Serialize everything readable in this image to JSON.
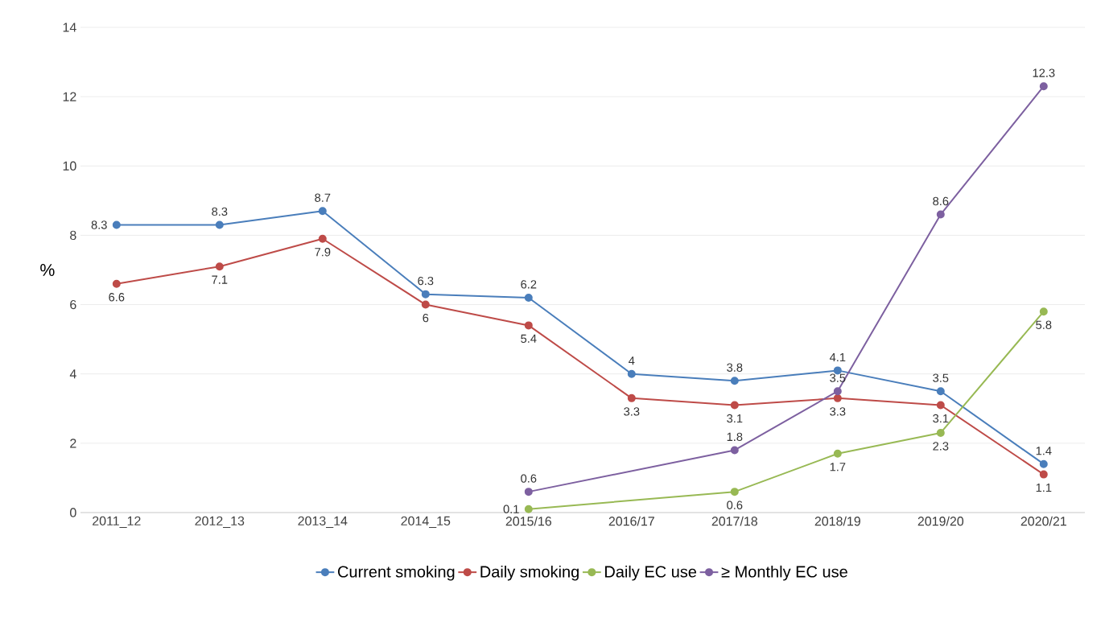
{
  "chart_data": {
    "type": "line",
    "ylabel": "%",
    "categories": [
      "2011_12",
      "2012_13",
      "2013_14",
      "2014_15",
      "2015/16",
      "2016/17",
      "2017/18",
      "2018/19",
      "2019/20",
      "2020/21"
    ],
    "series": [
      {
        "name": "Current smoking",
        "color": "#4a7ebb",
        "values": [
          8.3,
          8.3,
          8.7,
          6.3,
          6.2,
          4,
          3.8,
          4.1,
          3.5,
          1.4
        ]
      },
      {
        "name": "Daily smoking",
        "color": "#be4b48",
        "values": [
          6.6,
          7.1,
          7.9,
          6,
          5.4,
          3.3,
          3.1,
          3.3,
          3.1,
          1.1
        ]
      },
      {
        "name": "Daily EC use",
        "color": "#98b954",
        "values": [
          null,
          null,
          null,
          null,
          0.1,
          null,
          0.6,
          1.7,
          2.3,
          5.8
        ]
      },
      {
        "name": "≥ Monthly EC use",
        "color": "#7d60a0",
        "values": [
          null,
          null,
          null,
          null,
          0.6,
          null,
          1.8,
          3.5,
          8.6,
          12.3
        ]
      }
    ],
    "ylim": [
      0,
      14
    ],
    "yticks": [
      0,
      2,
      4,
      6,
      8,
      10,
      12,
      14
    ],
    "grid": "y",
    "legend": "bottom",
    "marker": "circle",
    "line_style": "solid",
    "data_labels": true
  }
}
